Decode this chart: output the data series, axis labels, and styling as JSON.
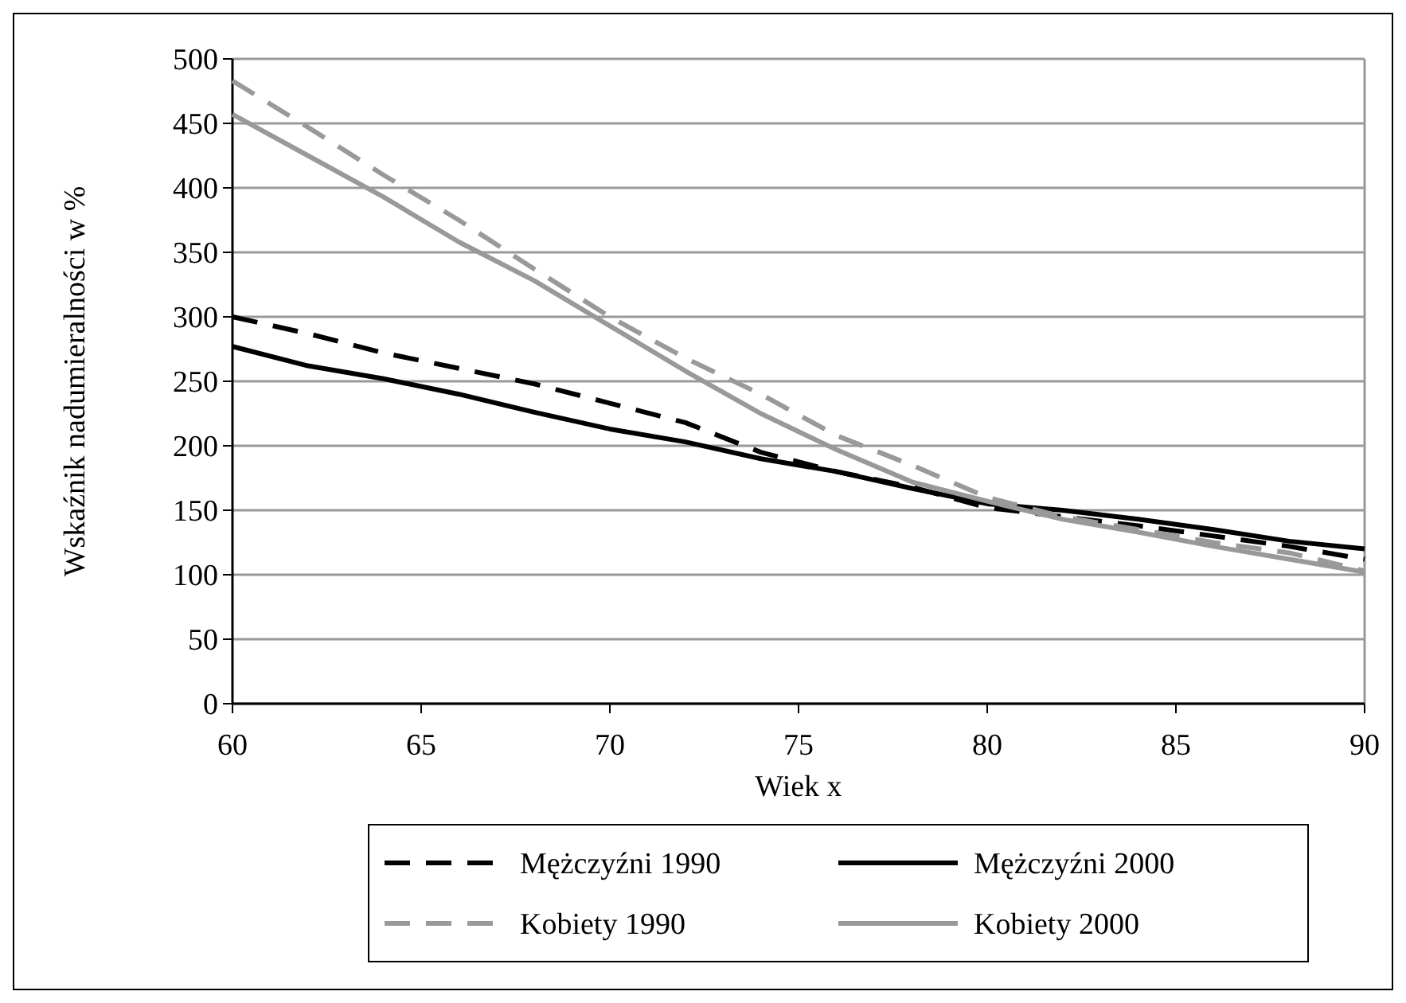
{
  "chart_data": {
    "type": "line",
    "xlabel": "Wiek x",
    "ylabel": "Wskaźnik nadumieralności w %",
    "xlim": [
      60,
      90
    ],
    "xticks": [
      60,
      65,
      70,
      75,
      80,
      85,
      90
    ],
    "ylim": [
      0,
      500
    ],
    "yticks": [
      0,
      50,
      100,
      150,
      200,
      250,
      300,
      350,
      400,
      450,
      500
    ],
    "grid": "y",
    "legend": "bottom",
    "x": [
      60,
      62,
      64,
      66,
      68,
      70,
      72,
      74,
      76,
      78,
      80,
      82,
      84,
      86,
      88,
      90
    ],
    "series": [
      {
        "name": "Mężczyźni 1990",
        "color": "#000000",
        "line_style": "dashed",
        "values": [
          300,
          287,
          272,
          260,
          248,
          233,
          218,
          195,
          180,
          168,
          152,
          145,
          138,
          130,
          122,
          112
        ]
      },
      {
        "name": "Mężczyźni 2000",
        "color": "#000000",
        "line_style": "solid",
        "values": [
          277,
          262,
          252,
          240,
          226,
          213,
          203,
          190,
          180,
          167,
          155,
          150,
          143,
          135,
          126,
          120
        ]
      },
      {
        "name": "Kobiety 1990",
        "color": "#999999",
        "line_style": "dashed",
        "values": [
          483,
          447,
          410,
          375,
          337,
          300,
          268,
          240,
          208,
          185,
          160,
          145,
          135,
          125,
          117,
          103
        ]
      },
      {
        "name": "Kobiety 2000",
        "color": "#999999",
        "line_style": "solid",
        "values": [
          457,
          425,
          393,
          358,
          328,
          293,
          258,
          225,
          197,
          172,
          157,
          143,
          133,
          122,
          112,
          102
        ]
      }
    ]
  }
}
